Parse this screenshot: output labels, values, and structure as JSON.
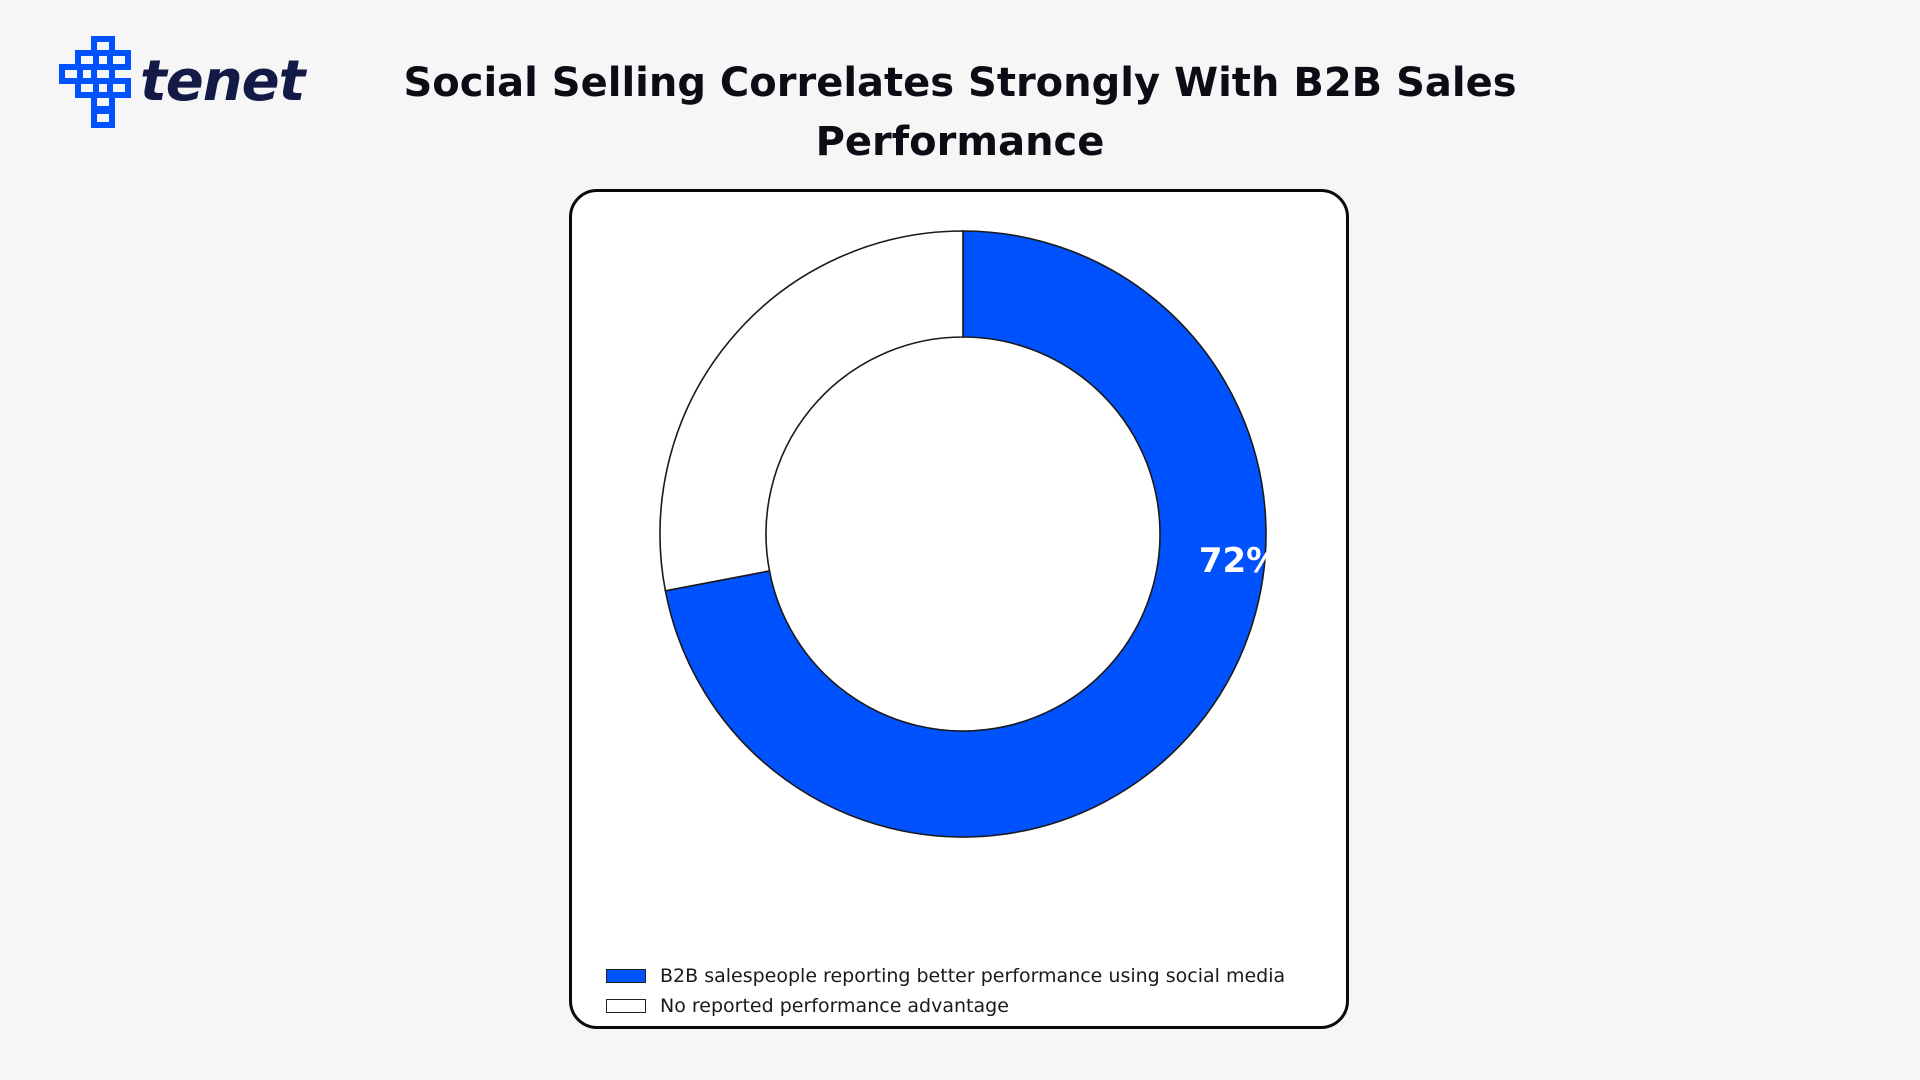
{
  "brand": {
    "name": "tenet",
    "logo_icon": "tenet-logo-icon",
    "accent_color": "#0052ff",
    "text_color": "#141a46"
  },
  "title": "Social Selling Correlates Strongly With B2B Sales Performance",
  "chart_data": {
    "type": "pie",
    "variant": "donut",
    "title": "Social Selling Correlates Strongly With B2B Sales Performance",
    "slices": [
      {
        "label": "B2B salespeople reporting better performance using social media",
        "value": 72,
        "color": "#0052ff",
        "data_label": "72%"
      },
      {
        "label": "No reported performance advantage",
        "value": 28,
        "color": "#ffffff",
        "data_label": ""
      }
    ],
    "start_angle": "top",
    "direction": "clockwise",
    "legend_position": "bottom-left"
  }
}
